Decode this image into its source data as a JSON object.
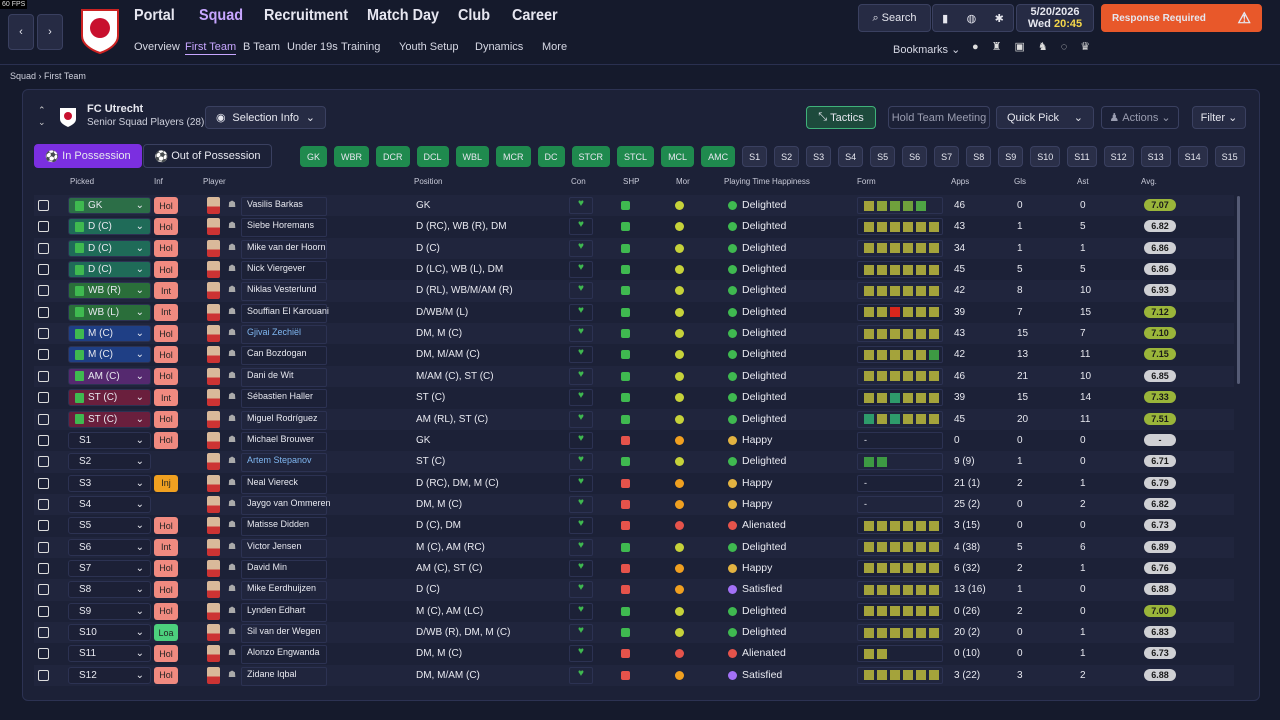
{
  "fps": "60 FPS",
  "nav": {
    "main": [
      "Portal",
      "Squad",
      "Recruitment",
      "Match Day",
      "Club",
      "Career"
    ],
    "sub": [
      "Overview",
      "First Team",
      "B Team",
      "Under 19s",
      "Training",
      "Youth Setup",
      "Dynamics",
      "More"
    ]
  },
  "top": {
    "search": "Search",
    "date": "5/20/2026",
    "day": "Wed",
    "time": "20:45",
    "response": "Response Required",
    "bookmarks": "Bookmarks"
  },
  "breadcrumb": [
    "Squad",
    "First Team"
  ],
  "club": {
    "name": "FC Utrecht",
    "subtitle": "Senior Squad Players (28)"
  },
  "buttons": {
    "selection_info": "Selection Info",
    "tactics": "Tactics",
    "meeting": "Hold Team Meeting",
    "quick_pick": "Quick Pick",
    "actions": "Actions",
    "filter": "Filter"
  },
  "tabs": [
    "In Possession",
    "Out of Possession"
  ],
  "positions": [
    "GK",
    "WBR",
    "DCR",
    "DCL",
    "WBL",
    "MCR",
    "DC",
    "STCR",
    "STCL",
    "MCL",
    "AMC"
  ],
  "subs": [
    "S1",
    "S2",
    "S3",
    "S4",
    "S5",
    "S6",
    "S7",
    "S8",
    "S9",
    "S10",
    "S11",
    "S12",
    "S13",
    "S14",
    "S15"
  ],
  "table": {
    "columns": [
      "Picked",
      "Inf",
      "Player",
      "Position",
      "Con",
      "SHP",
      "Mor",
      "Playing Time Happiness",
      "Form",
      "Apps",
      "Gls",
      "Ast",
      "Avg."
    ],
    "rows": [
      {
        "picked": "GK",
        "picked_color": "#2c6e47",
        "inf": "Hol",
        "inf_color": "#f08a80",
        "name": "Vasilis Barkas",
        "position": "GK",
        "pth": "Delighted",
        "pth_color": "#3fb950",
        "form": [
          "#a4a33b",
          "#8ea43a",
          "#6fa03c",
          "#6fa03c",
          "#4fa544"
        ],
        "apps": "46",
        "gls": "0",
        "ast": "0",
        "avg": "7.07"
      },
      {
        "picked": "D (C)",
        "picked_color": "#1f6b58",
        "inf": "Hol",
        "inf_color": "#f08a80",
        "name": "Siebe Horemans",
        "position": "D (RC), WB (R), DM",
        "pth": "Delighted",
        "pth_color": "#3fb950",
        "form": [
          "#a4a33b",
          "#a4a33b",
          "#a4a33b",
          "#a4a33b",
          "#a4a33b",
          "#a4a33b"
        ],
        "apps": "43",
        "gls": "1",
        "ast": "5",
        "avg": "6.82"
      },
      {
        "picked": "D (C)",
        "picked_color": "#1f6b58",
        "inf": "Hol",
        "inf_color": "#f08a80",
        "name": "Mike van der Hoorn",
        "position": "D (C)",
        "pth": "Delighted",
        "pth_color": "#3fb950",
        "form": [
          "#a4a33b",
          "#a4a33b",
          "#a4a33b",
          "#a4a33b",
          "#a4a33b",
          "#a4a33b"
        ],
        "apps": "34",
        "gls": "1",
        "ast": "1",
        "avg": "6.86"
      },
      {
        "picked": "D (C)",
        "picked_color": "#1f6b58",
        "inf": "Hol",
        "inf_color": "#f08a80",
        "name": "Nick Viergever",
        "position": "D (LC), WB (L), DM",
        "pth": "Delighted",
        "pth_color": "#3fb950",
        "form": [
          "#a4a33b",
          "#a4a33b",
          "#a4a33b",
          "#a4a33b",
          "#a4a33b",
          "#a4a33b"
        ],
        "apps": "45",
        "gls": "5",
        "ast": "5",
        "avg": "6.86"
      },
      {
        "picked": "WB (R)",
        "picked_color": "#2a6e3a",
        "inf": "Int",
        "inf_color": "#f08a80",
        "name": "Niklas Vesterlund",
        "position": "D (RL), WB/M/AM (R)",
        "pth": "Delighted",
        "pth_color": "#3fb950",
        "form": [
          "#a4a33b",
          "#a4a33b",
          "#a4a33b",
          "#a4a33b",
          "#a4a33b",
          "#a4a33b"
        ],
        "apps": "42",
        "gls": "8",
        "ast": "10",
        "avg": "6.93"
      },
      {
        "picked": "WB (L)",
        "picked_color": "#2a6e3a",
        "inf": "Int",
        "inf_color": "#f08a80",
        "name": "Souffian El Karouani",
        "position": "D/WB/M (L)",
        "pth": "Delighted",
        "pth_color": "#3fb950",
        "form": [
          "#a4a33b",
          "#a4a33b",
          "#d9261c",
          "#a4a33b",
          "#a4a33b",
          "#a4a33b"
        ],
        "apps": "39",
        "gls": "7",
        "ast": "15",
        "avg": "7.12"
      },
      {
        "picked": "M (C)",
        "picked_color": "#1f3f85",
        "inf": "Hol",
        "inf_color": "#f08a80",
        "name": "Gjivai Zechiël",
        "name_color": "#7fb6f0",
        "position": "DM, M (C)",
        "pth": "Delighted",
        "pth_color": "#3fb950",
        "form": [
          "#a4a33b",
          "#a4a33b",
          "#a4a33b",
          "#a4a33b",
          "#a4a33b",
          "#a4a33b"
        ],
        "apps": "43",
        "gls": "15",
        "ast": "7",
        "avg": "7.10"
      },
      {
        "picked": "M (C)",
        "picked_color": "#1f3f85",
        "inf": "Hol",
        "inf_color": "#f08a80",
        "name": "Can Bozdogan",
        "position": "DM, M/AM (C)",
        "pth": "Delighted",
        "pth_color": "#3fb950",
        "form": [
          "#a4a33b",
          "#a4a33b",
          "#a4a33b",
          "#a4a33b",
          "#a4a33b",
          "#3d9a43"
        ],
        "apps": "42",
        "gls": "13",
        "ast": "11",
        "avg": "7.15"
      },
      {
        "picked": "AM (C)",
        "picked_color": "#55296f",
        "inf": "Hol",
        "inf_color": "#f08a80",
        "name": "Dani de Wit",
        "position": "M/AM (C), ST (C)",
        "pth": "Delighted",
        "pth_color": "#3fb950",
        "form": [
          "#a4a33b",
          "#a4a33b",
          "#a4a33b",
          "#a4a33b",
          "#a4a33b",
          "#a4a33b"
        ],
        "apps": "46",
        "gls": "21",
        "ast": "10",
        "avg": "6.85"
      },
      {
        "picked": "ST (C)",
        "picked_color": "#6a1f3d",
        "inf": "Int",
        "inf_color": "#f08a80",
        "name": "Sébastien Haller",
        "position": "ST (C)",
        "pth": "Delighted",
        "pth_color": "#3fb950",
        "form": [
          "#a4a33b",
          "#a4a33b",
          "#2e9b6b",
          "#a4a33b",
          "#a4a33b",
          "#a4a33b"
        ],
        "apps": "39",
        "gls": "15",
        "ast": "14",
        "avg": "7.33"
      },
      {
        "picked": "ST (C)",
        "picked_color": "#6a1f3d",
        "inf": "Hol",
        "inf_color": "#f08a80",
        "name": "Miguel Rodríguez",
        "position": "AM (RL), ST (C)",
        "pth": "Delighted",
        "pth_color": "#3fb950",
        "form": [
          "#2e9b6b",
          "#a4a33b",
          "#2e9b6b",
          "#a4a33b",
          "#a4a33b",
          "#a4a33b"
        ],
        "apps": "45",
        "gls": "20",
        "ast": "11",
        "avg": "7.51"
      },
      {
        "picked": "S1",
        "inf": "Hol",
        "inf_color": "#f08a80",
        "name": "Michael Brouwer",
        "position": "GK",
        "pth": "Happy",
        "pth_color": "#e3b341",
        "form": "-",
        "apps": "0",
        "gls": "0",
        "ast": "0",
        "avg": "-"
      },
      {
        "picked": "S2",
        "name": "Artem Stepanov",
        "name_color": "#7fb6f0",
        "position": "ST (C)",
        "pth": "Delighted",
        "pth_color": "#3fb950",
        "form": [
          "#3d9a43",
          "#3d9a43"
        ],
        "apps": "9 (9)",
        "gls": "1",
        "ast": "0",
        "avg": "6.71"
      },
      {
        "picked": "S3",
        "inf": "Inj",
        "inf_color": "#f0a020",
        "name": "Neal Viereck",
        "position": "D (RC), DM, M (C)",
        "pth": "Happy",
        "pth_color": "#e3b341",
        "form": "-",
        "apps": "21 (1)",
        "gls": "2",
        "ast": "1",
        "avg": "6.79"
      },
      {
        "picked": "S4",
        "name": "Jaygo van Ommeren",
        "position": "DM, M (C)",
        "pth": "Happy",
        "pth_color": "#e3b341",
        "form": "-",
        "apps": "25 (2)",
        "gls": "0",
        "ast": "2",
        "avg": "6.82"
      },
      {
        "picked": "S5",
        "inf": "Hol",
        "inf_color": "#f08a80",
        "name": "Matisse Didden",
        "position": "D (C), DM",
        "pth": "Alienated",
        "pth_color": "#e5534b",
        "form": [
          "#a4a33b",
          "#a4a33b",
          "#a4a33b",
          "#a4a33b",
          "#a4a33b",
          "#a4a33b"
        ],
        "apps": "3 (15)",
        "gls": "0",
        "ast": "0",
        "avg": "6.73"
      },
      {
        "picked": "S6",
        "inf": "Int",
        "inf_color": "#f08a80",
        "name": "Victor Jensen",
        "position": "M (C), AM (RC)",
        "pth": "Delighted",
        "pth_color": "#3fb950",
        "form": [
          "#a4a33b",
          "#a4a33b",
          "#a4a33b",
          "#a4a33b",
          "#a4a33b",
          "#a4a33b"
        ],
        "apps": "4 (38)",
        "gls": "5",
        "ast": "6",
        "avg": "6.89"
      },
      {
        "picked": "S7",
        "inf": "Hol",
        "inf_color": "#f08a80",
        "name": "David Min",
        "position": "AM (C), ST (C)",
        "pth": "Happy",
        "pth_color": "#e3b341",
        "form": [
          "#a4a33b",
          "#a4a33b",
          "#a4a33b",
          "#a4a33b",
          "#a4a33b",
          "#a4a33b"
        ],
        "apps": "6 (32)",
        "gls": "2",
        "ast": "1",
        "avg": "6.76"
      },
      {
        "picked": "S8",
        "inf": "Hol",
        "inf_color": "#f08a80",
        "name": "Mike Eerdhuijzen",
        "position": "D (C)",
        "pth": "Satisfied",
        "pth_color": "#a371f7",
        "form": [
          "#a4a33b",
          "#a4a33b",
          "#a4a33b",
          "#a4a33b",
          "#a4a33b",
          "#a4a33b"
        ],
        "apps": "13 (16)",
        "gls": "1",
        "ast": "0",
        "avg": "6.88"
      },
      {
        "picked": "S9",
        "inf": "Hol",
        "inf_color": "#f08a80",
        "name": "Lynden Edhart",
        "position": "M (C), AM (LC)",
        "pth": "Delighted",
        "pth_color": "#3fb950",
        "form": [
          "#a4a33b",
          "#a4a33b",
          "#a4a33b",
          "#a4a33b",
          "#a4a33b",
          "#a4a33b"
        ],
        "apps": "0 (26)",
        "gls": "2",
        "ast": "0",
        "avg": "7.00"
      },
      {
        "picked": "S10",
        "inf": "Loa",
        "inf_color": "#4cd07d",
        "name": "Sil van der Wegen",
        "position": "D/WB (R), DM, M (C)",
        "pth": "Delighted",
        "pth_color": "#3fb950",
        "form": [
          "#a4a33b",
          "#a4a33b",
          "#a4a33b",
          "#a4a33b",
          "#a4a33b",
          "#a4a33b"
        ],
        "apps": "20 (2)",
        "gls": "0",
        "ast": "1",
        "avg": "6.83"
      },
      {
        "picked": "S11",
        "inf": "Hol",
        "inf_color": "#f08a80",
        "name": "Alonzo Engwanda",
        "position": "DM, M (C)",
        "pth": "Alienated",
        "pth_color": "#e5534b",
        "form": [
          "#a4a33b",
          "#a4a33b"
        ],
        "apps": "0 (10)",
        "gls": "0",
        "ast": "1",
        "avg": "6.73"
      },
      {
        "picked": "S12",
        "inf": "Hol",
        "inf_color": "#f08a80",
        "name": "Zidane Iqbal",
        "position": "DM, M/AM (C)",
        "pth": "Satisfied",
        "pth_color": "#a371f7",
        "form": [
          "#a4a33b",
          "#a4a33b",
          "#a4a33b",
          "#a4a33b",
          "#a4a33b",
          "#a4a33b"
        ],
        "apps": "3 (22)",
        "gls": "3",
        "ast": "2",
        "avg": "6.88"
      }
    ]
  }
}
